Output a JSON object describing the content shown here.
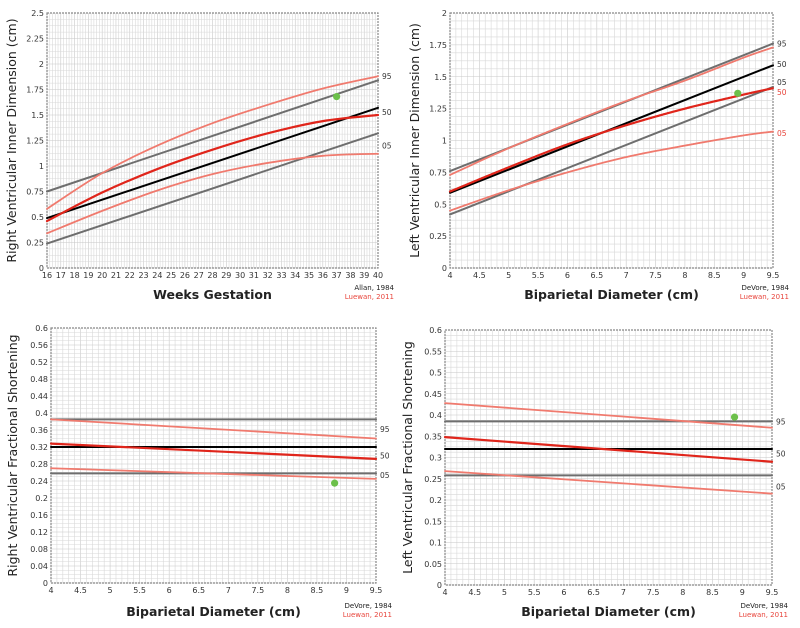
{
  "chart_data": [
    {
      "type": "line",
      "id": "rv-inner",
      "ylabel": "Right Ventricular Inner Dimension (cm)",
      "xlabel": "Weeks Gestation",
      "xlim": [
        16,
        40
      ],
      "ylim": [
        0,
        2.5
      ],
      "xticks": [
        16,
        17,
        18,
        19,
        20,
        21,
        22,
        23,
        24,
        25,
        26,
        27,
        28,
        29,
        30,
        31,
        32,
        33,
        34,
        35,
        36,
        37,
        38,
        39,
        40
      ],
      "xtick_labels": [
        "16",
        "17",
        "18",
        "19",
        "20",
        "21",
        "22",
        "23",
        "24",
        "25",
        "26",
        "27",
        "28",
        "29",
        "30",
        "31",
        "32",
        "33",
        "34",
        "35",
        "36",
        "37",
        "38",
        "39",
        "40"
      ],
      "yticks": [
        0,
        0.25,
        0.5,
        0.75,
        1,
        1.25,
        1.5,
        1.75,
        2,
        2.25,
        2.5
      ],
      "ytick_labels": [
        "0",
        "0.25",
        "0.5",
        "0.75",
        "1",
        "1.25",
        "1.5",
        "1.75",
        "2",
        "2.25",
        "2.5"
      ],
      "grid": true,
      "series": [
        {
          "name": "Allan 1984 95th",
          "ref": "allan",
          "pct": "95",
          "x": [
            16,
            40
          ],
          "y": [
            0.75,
            1.84
          ]
        },
        {
          "name": "Allan 1984 50th",
          "ref": "allan",
          "pct": "50",
          "x": [
            16,
            40
          ],
          "y": [
            0.49,
            1.57
          ]
        },
        {
          "name": "Allan 1984 05th",
          "ref": "allan",
          "pct": "05",
          "x": [
            16,
            40
          ],
          "y": [
            0.24,
            1.32
          ]
        },
        {
          "name": "Luewan 2011 95th",
          "ref": "luewan",
          "pct": "95",
          "x": [
            16,
            20,
            24,
            28,
            32,
            36,
            40
          ],
          "y": [
            0.58,
            0.93,
            1.2,
            1.42,
            1.6,
            1.76,
            1.88
          ]
        },
        {
          "name": "Luewan 2011 50th",
          "ref": "luewan",
          "pct": "50",
          "x": [
            16,
            20,
            24,
            28,
            32,
            36,
            40
          ],
          "y": [
            0.46,
            0.74,
            0.97,
            1.16,
            1.32,
            1.44,
            1.5
          ]
        },
        {
          "name": "Luewan 2011 05th",
          "ref": "luewan",
          "pct": "05",
          "x": [
            16,
            20,
            24,
            28,
            32,
            36,
            40
          ],
          "y": [
            0.34,
            0.56,
            0.76,
            0.92,
            1.03,
            1.1,
            1.12
          ]
        }
      ],
      "percentile_labels": [
        {
          "text": "95",
          "y": 1.88,
          "color": "#333333"
        },
        {
          "text": "50",
          "y": 1.53,
          "color": "#333333"
        },
        {
          "text": "05",
          "y": 1.2,
          "color": "#333333"
        }
      ],
      "patient_point": {
        "x": 37,
        "y": 1.68
      },
      "citations": [
        "Allan, 1984",
        "Luewan, 2011"
      ]
    },
    {
      "type": "line",
      "id": "lv-inner",
      "ylabel": "Left Ventricular Inner Dimension (cm)",
      "xlabel": "Biparietal Diameter (cm)",
      "xlim": [
        4,
        9.5
      ],
      "ylim": [
        0,
        2
      ],
      "xticks": [
        4,
        4.5,
        5,
        5.5,
        6,
        6.5,
        7,
        7.5,
        8,
        8.5,
        9,
        9.5
      ],
      "xtick_labels": [
        "4",
        "4.5",
        "5",
        "5.5",
        "6",
        "6.5",
        "7",
        "7.5",
        "8",
        "8.5",
        "9",
        "9.5"
      ],
      "yticks": [
        0,
        0.25,
        0.5,
        0.75,
        1,
        1.25,
        1.5,
        1.75,
        2
      ],
      "ytick_labels": [
        "0",
        "0.25",
        "0.5",
        "0.75",
        "1",
        "1.25",
        "1.5",
        "1.75",
        "2"
      ],
      "grid": true,
      "series": [
        {
          "name": "DeVore 1984 95th",
          "ref": "devore",
          "pct": "95",
          "x": [
            4,
            9.5
          ],
          "y": [
            0.76,
            1.76
          ]
        },
        {
          "name": "DeVore 1984 50th",
          "ref": "devore",
          "pct": "50",
          "x": [
            4,
            9.5
          ],
          "y": [
            0.59,
            1.59
          ]
        },
        {
          "name": "DeVore 1984 05th",
          "ref": "devore",
          "pct": "05",
          "x": [
            4,
            9.5
          ],
          "y": [
            0.42,
            1.42
          ]
        },
        {
          "name": "Luewan 2011 95th",
          "ref": "luewan",
          "pct": "95",
          "x": [
            4,
            5,
            6,
            7,
            8,
            9,
            9.5
          ],
          "y": [
            0.73,
            0.94,
            1.13,
            1.31,
            1.47,
            1.65,
            1.73
          ]
        },
        {
          "name": "Luewan 2011 50th",
          "ref": "luewan",
          "pct": "50",
          "x": [
            4,
            5,
            6,
            7,
            8,
            9,
            9.5
          ],
          "y": [
            0.6,
            0.79,
            0.97,
            1.12,
            1.25,
            1.36,
            1.41
          ]
        },
        {
          "name": "Luewan 2011 05th",
          "ref": "luewan",
          "pct": "05",
          "x": [
            4,
            5,
            6,
            7,
            8,
            9,
            9.5
          ],
          "y": [
            0.45,
            0.61,
            0.75,
            0.87,
            0.96,
            1.04,
            1.07
          ]
        }
      ],
      "percentile_labels": [
        {
          "text": "95",
          "y": 1.76,
          "color": "#333333"
        },
        {
          "text": "50",
          "y": 1.6,
          "color": "#333333"
        },
        {
          "text": "05",
          "y": 1.46,
          "color": "#333333"
        },
        {
          "text": "50",
          "y": 1.38,
          "color": "#e8453c"
        },
        {
          "text": "05",
          "y": 1.06,
          "color": "#e8453c"
        }
      ],
      "patient_point": {
        "x": 8.9,
        "y": 1.37
      },
      "citations": [
        "DeVore, 1984",
        "Luewan, 2011"
      ]
    },
    {
      "type": "line",
      "id": "rv-fs",
      "ylabel": "Right Ventricular Fractional Shortening",
      "xlabel": "Biparietal Diameter (cm)",
      "xlim": [
        4,
        9.5
      ],
      "ylim": [
        0,
        0.6
      ],
      "xticks": [
        4,
        4.5,
        5,
        5.5,
        6,
        6.5,
        7,
        7.5,
        8,
        8.5,
        9,
        9.5
      ],
      "xtick_labels": [
        "4",
        "4.5",
        "5",
        "5.5",
        "6",
        "6.5",
        "7",
        "7.5",
        "8",
        "8.5",
        "9",
        "9.5"
      ],
      "yticks": [
        0,
        0.04,
        0.08,
        0.12,
        0.16,
        0.2,
        0.24,
        0.28,
        0.32,
        0.36,
        0.4,
        0.44,
        0.48,
        0.52,
        0.56,
        0.6
      ],
      "ytick_labels": [
        "0",
        "0.04",
        "0.08",
        "0.12",
        "0.16",
        "0.2",
        "0.24",
        "0.28",
        "0.32",
        "0.36",
        "0.4",
        "0.44",
        "0.48",
        "0.52",
        "0.56",
        "0.6"
      ],
      "grid": true,
      "series": [
        {
          "name": "DeVore 1984 95th",
          "ref": "devore",
          "pct": "95",
          "x": [
            4,
            9.5
          ],
          "y": [
            0.385,
            0.385
          ]
        },
        {
          "name": "DeVore 1984 50th",
          "ref": "devore",
          "pct": "50",
          "x": [
            4,
            9.5
          ],
          "y": [
            0.32,
            0.32
          ]
        },
        {
          "name": "DeVore 1984 05th",
          "ref": "devore",
          "pct": "05",
          "x": [
            4,
            9.5
          ],
          "y": [
            0.258,
            0.258
          ]
        },
        {
          "name": "Luewan 2011 95th",
          "ref": "luewan",
          "pct": "95",
          "x": [
            4,
            9.5
          ],
          "y": [
            0.385,
            0.34
          ]
        },
        {
          "name": "Luewan 2011 50th",
          "ref": "luewan",
          "pct": "50",
          "x": [
            4,
            9.5
          ],
          "y": [
            0.328,
            0.292
          ]
        },
        {
          "name": "Luewan 2011 05th",
          "ref": "luewan",
          "pct": "05",
          "x": [
            4,
            9.5
          ],
          "y": [
            0.27,
            0.245
          ]
        }
      ],
      "percentile_labels": [
        {
          "text": "95",
          "y": 0.362,
          "color": "#333333"
        },
        {
          "text": "50",
          "y": 0.3,
          "color": "#333333"
        },
        {
          "text": "05",
          "y": 0.254,
          "color": "#333333"
        }
      ],
      "patient_point": {
        "x": 8.8,
        "y": 0.235
      },
      "citations": [
        "DeVore, 1984",
        "Luewan, 2011"
      ]
    },
    {
      "type": "line",
      "id": "lv-fs",
      "ylabel": "Left Ventricular Fractional Shortening",
      "xlabel": "Biparietal Diameter (cm)",
      "xlim": [
        4,
        9.5
      ],
      "ylim": [
        0,
        0.6
      ],
      "xticks": [
        4,
        4.5,
        5,
        5.5,
        6,
        6.5,
        7,
        7.5,
        8,
        8.5,
        9,
        9.5
      ],
      "xtick_labels": [
        "4",
        "4.5",
        "5",
        "5.5",
        "6",
        "6.5",
        "7",
        "7.5",
        "8",
        "8.5",
        "9",
        "9.5"
      ],
      "yticks": [
        0,
        0.05,
        0.1,
        0.15,
        0.2,
        0.25,
        0.3,
        0.35,
        0.4,
        0.45,
        0.5,
        0.55,
        0.6
      ],
      "ytick_labels": [
        "0",
        "0.05",
        "0.1",
        "0.15",
        "0.2",
        "0.25",
        "0.3",
        "0.35",
        "0.4",
        "0.45",
        "0.5",
        "0.55",
        "0.6"
      ],
      "grid": true,
      "series": [
        {
          "name": "DeVore 1984 95th",
          "ref": "devore",
          "pct": "95",
          "x": [
            4,
            9.5
          ],
          "y": [
            0.385,
            0.385
          ]
        },
        {
          "name": "DeVore 1984 50th",
          "ref": "devore",
          "pct": "50",
          "x": [
            4,
            9.5
          ],
          "y": [
            0.32,
            0.32
          ]
        },
        {
          "name": "DeVore 1984 05th",
          "ref": "devore",
          "pct": "05",
          "x": [
            4,
            9.5
          ],
          "y": [
            0.258,
            0.258
          ]
        },
        {
          "name": "Luewan 2011 95th",
          "ref": "luewan",
          "pct": "95",
          "x": [
            4,
            9.5
          ],
          "y": [
            0.428,
            0.37
          ]
        },
        {
          "name": "Luewan 2011 50th",
          "ref": "luewan",
          "pct": "50",
          "x": [
            4,
            9.5
          ],
          "y": [
            0.348,
            0.29
          ]
        },
        {
          "name": "Luewan 2011 05th",
          "ref": "luewan",
          "pct": "05",
          "x": [
            4,
            9.5
          ],
          "y": [
            0.268,
            0.215
          ]
        }
      ],
      "percentile_labels": [
        {
          "text": "95",
          "y": 0.385,
          "color": "#333333"
        },
        {
          "text": "50",
          "y": 0.31,
          "color": "#333333"
        },
        {
          "text": "05",
          "y": 0.232,
          "color": "#333333"
        }
      ],
      "patient_point": {
        "x": 8.87,
        "y": 0.395
      },
      "citations": [
        "DeVore, 1984",
        "Luewan, 2011"
      ]
    }
  ],
  "colors": {
    "reference_95_05": "#6e6e6e",
    "reference_50": "#000000",
    "luewan_95_05": "#f07a6e",
    "luewan_50": "#e0251b",
    "patient_point": "#6cc04a",
    "citation_primary": "#222222",
    "citation_secondary": "#e8453c",
    "grid": "#d8d8d8",
    "frame": "#888888"
  }
}
